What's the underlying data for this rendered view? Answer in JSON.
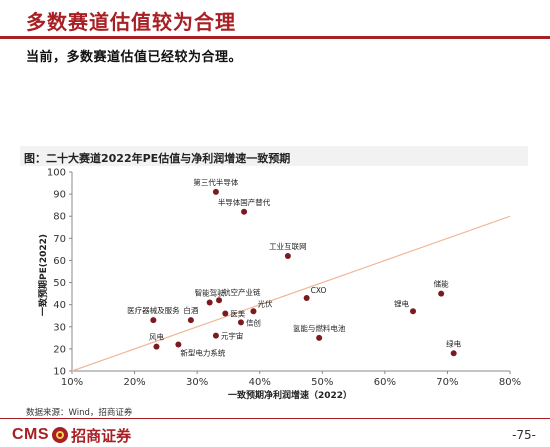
{
  "page": {
    "title": "多数赛道估值较为合理",
    "subtitle": "当前，多数赛道估值已经较为合理。",
    "source": "数据来源：Wind，招商证券",
    "page_number": "-75-",
    "logo_text": "CMS",
    "logo_cn": "招商证券"
  },
  "chart_data": {
    "type": "scatter",
    "title": "图：二十大赛道2022年PE估值与净利润增速一致预期",
    "xlabel": "一致预期净利润增速（2022）",
    "ylabel": "一致预期PE(2022)",
    "xlim": [
      0.1,
      0.8
    ],
    "ylim": [
      10,
      100
    ],
    "x_ticks": [
      "10%",
      "20%",
      "30%",
      "40%",
      "50%",
      "60%",
      "70%",
      "80%"
    ],
    "x_tick_values": [
      0.1,
      0.2,
      0.3,
      0.4,
      0.5,
      0.6,
      0.7,
      0.8
    ],
    "y_ticks": [
      "10",
      "20",
      "30",
      "40",
      "50",
      "60",
      "70",
      "80",
      "90",
      "100"
    ],
    "y_tick_values": [
      10,
      20,
      30,
      40,
      50,
      60,
      70,
      80,
      90,
      100
    ],
    "grid": false,
    "colors": {
      "point": "#7b1a1f",
      "trend": "#f0b89a",
      "axis": "#888888"
    },
    "trendline": {
      "x": [
        0.1,
        0.8
      ],
      "y": [
        10,
        80
      ]
    },
    "points": [
      {
        "label": "第三代半导体",
        "x": 0.33,
        "y": 91,
        "label_pos": "top"
      },
      {
        "label": "半导体国产替代",
        "x": 0.375,
        "y": 82,
        "label_pos": "top"
      },
      {
        "label": "工业互联网",
        "x": 0.445,
        "y": 62,
        "label_pos": "top"
      },
      {
        "label": "CXO",
        "x": 0.475,
        "y": 43,
        "label_pos": "top-right"
      },
      {
        "label": "储能",
        "x": 0.69,
        "y": 45,
        "label_pos": "top"
      },
      {
        "label": "锂电",
        "x": 0.645,
        "y": 37,
        "label_pos": "top-left"
      },
      {
        "label": "绿电",
        "x": 0.71,
        "y": 18,
        "label_pos": "top"
      },
      {
        "label": "氢能与燃料电池",
        "x": 0.495,
        "y": 25,
        "label_pos": "top"
      },
      {
        "label": "智能驾驶",
        "x": 0.32,
        "y": 41,
        "label_pos": "top"
      },
      {
        "label": "航空产业链",
        "x": 0.335,
        "y": 42,
        "label_pos": "top-right"
      },
      {
        "label": "光伏",
        "x": 0.39,
        "y": 37,
        "label_pos": "top-right"
      },
      {
        "label": "医疗器械及服务",
        "x": 0.23,
        "y": 33,
        "label_pos": "top"
      },
      {
        "label": "白酒",
        "x": 0.29,
        "y": 33,
        "label_pos": "top"
      },
      {
        "label": "医美",
        "x": 0.345,
        "y": 36,
        "label_pos": "right"
      },
      {
        "label": "信创",
        "x": 0.37,
        "y": 32,
        "label_pos": "right"
      },
      {
        "label": "元宇宙",
        "x": 0.33,
        "y": 26,
        "label_pos": "right"
      },
      {
        "label": "风电",
        "x": 0.235,
        "y": 21,
        "label_pos": "top"
      },
      {
        "label": "新型电力系统",
        "x": 0.27,
        "y": 22,
        "label_pos": "bottom"
      }
    ]
  }
}
